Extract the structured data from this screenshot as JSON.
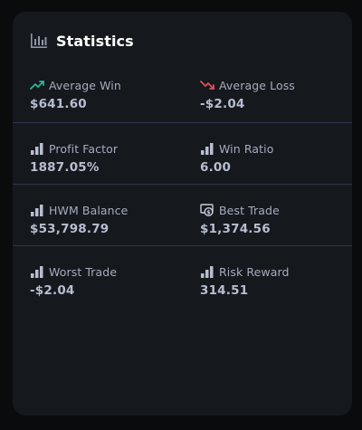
{
  "card": {
    "title": "Statistics",
    "title_icon": "bar-chart-icon"
  },
  "stats": {
    "average_win": {
      "label": "Average Win",
      "value": "$641.60",
      "icon": "trend-up-icon",
      "icon_color": "#2bb596"
    },
    "average_loss": {
      "label": "Average Loss",
      "value": "-$2.04",
      "icon": "trend-down-icon",
      "icon_color": "#e0505a"
    },
    "profit_factor": {
      "label": "Profit Factor",
      "value": "1887.05%",
      "icon": "signal-bars-icon"
    },
    "win_ratio": {
      "label": "Win Ratio",
      "value": "6.00",
      "icon": "signal-bars-icon"
    },
    "hwm_balance": {
      "label": "HWM Balance",
      "value": "$53,798.79",
      "icon": "signal-bars-icon"
    },
    "best_trade": {
      "label": "Best Trade",
      "value": "$1,374.56",
      "icon": "money-icon"
    },
    "worst_trade": {
      "label": "Worst Trade",
      "value": "-$2.04",
      "icon": "signal-bars-icon"
    },
    "risk_reward": {
      "label": "Risk Reward",
      "value": "314.51",
      "icon": "signal-bars-icon"
    }
  },
  "colors": {
    "background": "#0a0b0d",
    "card": "#15181d",
    "divider": "#2d3446",
    "label": "#a6acbd",
    "value": "#b8bed0",
    "title": "#ffffff"
  }
}
